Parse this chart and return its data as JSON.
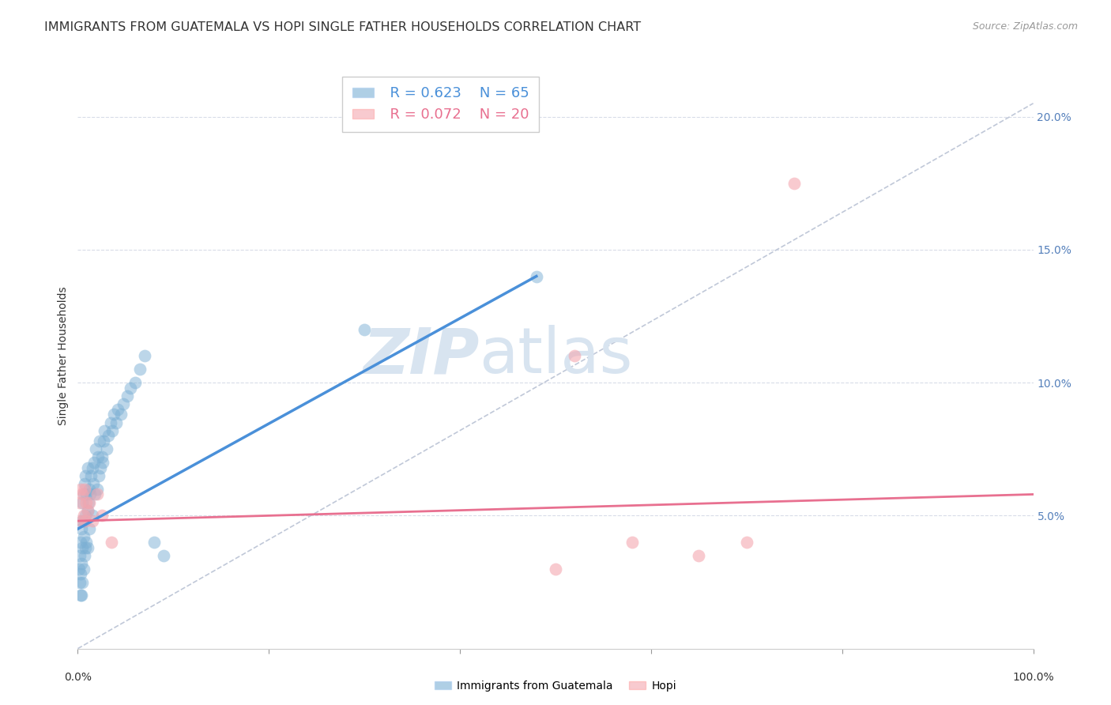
{
  "title": "IMMIGRANTS FROM GUATEMALA VS HOPI SINGLE FATHER HOUSEHOLDS CORRELATION CHART",
  "source": "Source: ZipAtlas.com",
  "ylabel": "Single Father Households",
  "yaxis_ticks_right": [
    "20.0%",
    "15.0%",
    "10.0%",
    "5.0%"
  ],
  "yaxis_values": [
    0.2,
    0.15,
    0.1,
    0.05
  ],
  "xlim": [
    0.0,
    1.0
  ],
  "ylim": [
    0.0,
    0.22
  ],
  "blue_color": "#7BAFD4",
  "pink_color": "#F4A7B0",
  "blue_line_color": "#4A90D9",
  "pink_line_color": "#E87090",
  "dashed_line_color": "#C0C8D8",
  "grid_color": "#D8DCE8",
  "right_axis_color": "#5580BB",
  "legend_R_blue": "R = 0.623",
  "legend_N_blue": "N = 65",
  "legend_R_pink": "R = 0.072",
  "legend_N_pink": "N = 20",
  "watermark": "ZIPatlas",
  "watermark_color": "#D8E4F0",
  "blue_scatter_x": [
    0.001,
    0.002,
    0.002,
    0.003,
    0.003,
    0.003,
    0.004,
    0.004,
    0.004,
    0.005,
    0.005,
    0.005,
    0.005,
    0.006,
    0.006,
    0.006,
    0.007,
    0.007,
    0.007,
    0.008,
    0.008,
    0.008,
    0.009,
    0.009,
    0.01,
    0.01,
    0.01,
    0.011,
    0.012,
    0.012,
    0.013,
    0.014,
    0.015,
    0.015,
    0.016,
    0.017,
    0.018,
    0.019,
    0.02,
    0.021,
    0.022,
    0.023,
    0.024,
    0.025,
    0.026,
    0.027,
    0.028,
    0.03,
    0.032,
    0.034,
    0.036,
    0.038,
    0.04,
    0.042,
    0.045,
    0.048,
    0.052,
    0.055,
    0.06,
    0.065,
    0.07,
    0.08,
    0.09,
    0.3,
    0.48
  ],
  "blue_scatter_y": [
    0.03,
    0.025,
    0.035,
    0.02,
    0.028,
    0.04,
    0.02,
    0.032,
    0.045,
    0.025,
    0.038,
    0.048,
    0.055,
    0.03,
    0.042,
    0.058,
    0.035,
    0.048,
    0.062,
    0.038,
    0.05,
    0.065,
    0.04,
    0.058,
    0.038,
    0.052,
    0.068,
    0.055,
    0.045,
    0.06,
    0.058,
    0.065,
    0.05,
    0.068,
    0.062,
    0.07,
    0.058,
    0.075,
    0.06,
    0.072,
    0.065,
    0.078,
    0.068,
    0.072,
    0.07,
    0.078,
    0.082,
    0.075,
    0.08,
    0.085,
    0.082,
    0.088,
    0.085,
    0.09,
    0.088,
    0.092,
    0.095,
    0.098,
    0.1,
    0.105,
    0.11,
    0.04,
    0.035,
    0.12,
    0.14
  ],
  "pink_scatter_x": [
    0.002,
    0.003,
    0.004,
    0.005,
    0.006,
    0.007,
    0.008,
    0.009,
    0.01,
    0.012,
    0.015,
    0.02,
    0.025,
    0.035,
    0.5,
    0.52,
    0.58,
    0.65,
    0.7,
    0.75
  ],
  "pink_scatter_y": [
    0.055,
    0.06,
    0.048,
    0.058,
    0.05,
    0.06,
    0.048,
    0.055,
    0.052,
    0.055,
    0.048,
    0.058,
    0.05,
    0.04,
    0.03,
    0.11,
    0.04,
    0.035,
    0.04,
    0.175
  ],
  "blue_trend_x": [
    0.0,
    0.48
  ],
  "blue_trend_y": [
    0.045,
    0.14
  ],
  "pink_trend_x": [
    0.0,
    1.0
  ],
  "pink_trend_y": [
    0.048,
    0.058
  ],
  "dashed_trend_x": [
    0.0,
    1.0
  ],
  "dashed_trend_y": [
    0.0,
    0.205
  ],
  "background_color": "#FFFFFF",
  "title_color": "#333333",
  "title_fontsize": 11.5,
  "source_fontsize": 9,
  "axis_label_fontsize": 10,
  "tick_fontsize": 10,
  "legend_fontsize": 13
}
